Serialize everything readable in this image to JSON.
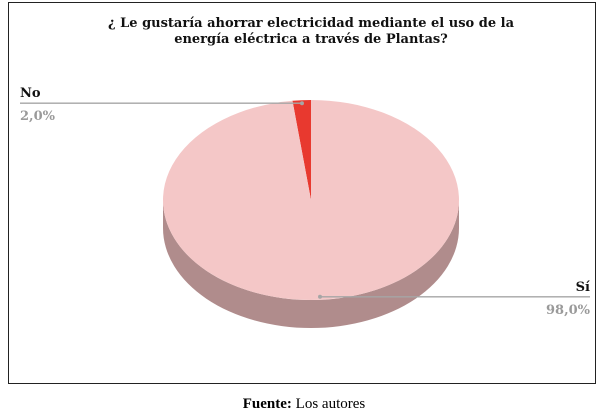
{
  "chart_data": {
    "type": "pie3d",
    "title": [
      "¿ Le gustaría ahorrar electricidad mediante el uso de la",
      "energía eléctrica a través de Plantas?"
    ],
    "categories": [
      "No",
      "Sí"
    ],
    "values": [
      2,
      98
    ],
    "value_labels": [
      "2,0%",
      "98,0%"
    ],
    "colors": [
      "#e8392f",
      "#f4c7c7"
    ],
    "side_colors": [
      "#a8231c",
      "#b08c8c"
    ]
  },
  "caption": {
    "label": "Fuente:",
    "text": "Los autores"
  }
}
